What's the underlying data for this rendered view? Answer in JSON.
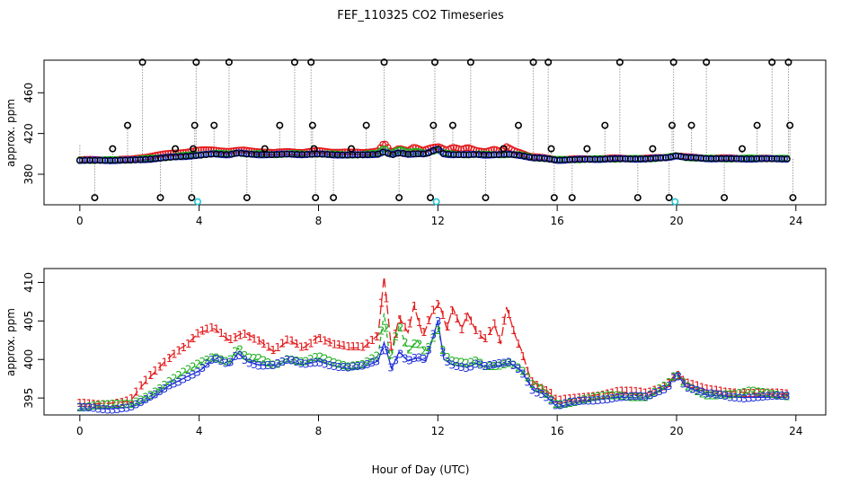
{
  "figure": {
    "title": "FEF_110325  CO2 Timeseries",
    "xlabel": "Hour of Day (UTC)"
  },
  "colors": {
    "black_series": "#000000",
    "red_series": "#e41a1c",
    "green_series": "#22b022",
    "blue_series": "#1f2fd8",
    "cyan_series": "#22c6d6",
    "dotted_line": "#9a9a9a"
  },
  "chart_data": [
    {
      "type": "scatter",
      "title": "",
      "xlabel": "",
      "ylabel": "approx. ppm",
      "xlim": [
        -1.2,
        25
      ],
      "ylim": [
        350,
        492
      ],
      "xticks": [
        0,
        4,
        8,
        12,
        16,
        20,
        24
      ],
      "yticks": [
        380,
        420,
        460
      ],
      "ytick_labels": [
        "380",
        "420",
        "460"
      ],
      "xtick_labels": [
        "0",
        "4",
        "8",
        "12",
        "16",
        "20",
        "24"
      ],
      "grid": false,
      "spikes": [
        {
          "x": 0.5,
          "y": 357
        },
        {
          "x": 1.1,
          "y": 405
        },
        {
          "x": 1.6,
          "y": 428
        },
        {
          "x": 2.1,
          "y": 490
        },
        {
          "x": 2.7,
          "y": 357
        },
        {
          "x": 3.2,
          "y": 405
        },
        {
          "x": 3.75,
          "y": 357
        },
        {
          "x": 3.8,
          "y": 405
        },
        {
          "x": 3.85,
          "y": 428
        },
        {
          "x": 3.9,
          "y": 490
        },
        {
          "x": 4.5,
          "y": 428
        },
        {
          "x": 5.0,
          "y": 490
        },
        {
          "x": 5.6,
          "y": 357
        },
        {
          "x": 6.2,
          "y": 405
        },
        {
          "x": 6.7,
          "y": 428
        },
        {
          "x": 7.2,
          "y": 490
        },
        {
          "x": 7.75,
          "y": 490
        },
        {
          "x": 7.8,
          "y": 428
        },
        {
          "x": 7.85,
          "y": 405
        },
        {
          "x": 7.9,
          "y": 357
        },
        {
          "x": 8.5,
          "y": 357
        },
        {
          "x": 9.1,
          "y": 405
        },
        {
          "x": 9.6,
          "y": 428
        },
        {
          "x": 10.2,
          "y": 490
        },
        {
          "x": 10.7,
          "y": 357
        },
        {
          "x": 11.75,
          "y": 357
        },
        {
          "x": 11.85,
          "y": 428
        },
        {
          "x": 11.9,
          "y": 490
        },
        {
          "x": 12.5,
          "y": 428
        },
        {
          "x": 13.1,
          "y": 490
        },
        {
          "x": 13.6,
          "y": 357
        },
        {
          "x": 14.2,
          "y": 405
        },
        {
          "x": 14.7,
          "y": 428
        },
        {
          "x": 15.2,
          "y": 490
        },
        {
          "x": 15.7,
          "y": 490
        },
        {
          "x": 15.8,
          "y": 405
        },
        {
          "x": 15.9,
          "y": 357
        },
        {
          "x": 16.5,
          "y": 357
        },
        {
          "x": 17.0,
          "y": 405
        },
        {
          "x": 17.6,
          "y": 428
        },
        {
          "x": 18.1,
          "y": 490
        },
        {
          "x": 18.7,
          "y": 357
        },
        {
          "x": 19.2,
          "y": 405
        },
        {
          "x": 19.75,
          "y": 357
        },
        {
          "x": 19.85,
          "y": 428
        },
        {
          "x": 19.9,
          "y": 490
        },
        {
          "x": 20.5,
          "y": 428
        },
        {
          "x": 21.0,
          "y": 490
        },
        {
          "x": 21.6,
          "y": 357
        },
        {
          "x": 22.2,
          "y": 405
        },
        {
          "x": 22.7,
          "y": 428
        },
        {
          "x": 23.2,
          "y": 490
        },
        {
          "x": 23.75,
          "y": 490
        },
        {
          "x": 23.8,
          "y": 428
        },
        {
          "x": 23.9,
          "y": 357
        }
      ],
      "cyan_points": [
        {
          "x": 3.95,
          "y": 353
        },
        {
          "x": 11.95,
          "y": 353
        },
        {
          "x": 19.95,
          "y": 353
        }
      ]
    },
    {
      "type": "line",
      "title": "",
      "xlabel": "Hour of Day (UTC)",
      "ylabel": "approx. ppm",
      "xlim": [
        -1.2,
        25
      ],
      "ylim": [
        392.8,
        411.8
      ],
      "xticks": [
        0,
        4,
        8,
        12,
        16,
        20,
        24
      ],
      "yticks": [
        395,
        400,
        405,
        410
      ],
      "ytick_labels": [
        "395",
        "400",
        "405",
        "410"
      ],
      "xtick_labels": [
        "0",
        "4",
        "8",
        "12",
        "16",
        "20",
        "24"
      ],
      "grid": false,
      "series": [
        {
          "marker": "1",
          "color_key": "red_series",
          "points": [
            [
              0,
              394.2
            ],
            [
              1,
              394.3
            ],
            [
              1.7,
              394.6
            ],
            [
              2,
              396.2
            ],
            [
              2.3,
              397.5
            ],
            [
              2.8,
              399.5
            ],
            [
              3.2,
              401
            ],
            [
              3.6,
              402
            ],
            [
              4,
              403.5
            ],
            [
              4.5,
              404
            ],
            [
              5,
              402.5
            ],
            [
              5.5,
              403.5
            ],
            [
              6,
              402.5
            ],
            [
              6.5,
              401
            ],
            [
              7,
              402.5
            ],
            [
              7.5,
              401.5
            ],
            [
              8,
              403
            ],
            [
              8.5,
              402
            ],
            [
              9,
              401.5
            ],
            [
              9.5,
              401.5
            ],
            [
              10,
              403.2
            ],
            [
              10.2,
              410.8
            ],
            [
              10.45,
              401
            ],
            [
              10.7,
              405.5
            ],
            [
              11,
              403.5
            ],
            [
              11.2,
              407
            ],
            [
              11.5,
              403
            ],
            [
              11.8,
              406
            ],
            [
              12.05,
              407.3
            ],
            [
              12.3,
              404
            ],
            [
              12.5,
              406.7
            ],
            [
              12.8,
              404
            ],
            [
              13,
              406
            ],
            [
              13.3,
              403.5
            ],
            [
              13.6,
              402.5
            ],
            [
              13.9,
              404.5
            ],
            [
              14.1,
              402
            ],
            [
              14.3,
              406.8
            ],
            [
              14.6,
              403
            ],
            [
              14.8,
              401.2
            ],
            [
              15.1,
              397.5
            ],
            [
              15.4,
              396.5
            ],
            [
              15.8,
              395.5
            ],
            [
              16,
              394.5
            ],
            [
              16.5,
              394.8
            ],
            [
              17,
              395.2
            ],
            [
              18,
              395.8
            ],
            [
              19,
              395.6
            ],
            [
              19.7,
              396.8
            ],
            [
              20,
              398.3
            ],
            [
              20.3,
              397
            ],
            [
              21,
              396
            ],
            [
              22,
              395.8
            ],
            [
              23,
              395.5
            ],
            [
              23.7,
              395.5
            ]
          ]
        },
        {
          "marker": "2",
          "color_key": "green_series",
          "points": [
            [
              0,
              393.9
            ],
            [
              1,
              394.0
            ],
            [
              1.7,
              394.2
            ],
            [
              2,
              394.8
            ],
            [
              2.5,
              395.8
            ],
            [
              3,
              397
            ],
            [
              3.5,
              398.2
            ],
            [
              4,
              399.5
            ],
            [
              4.5,
              400.5
            ],
            [
              5,
              399.7
            ],
            [
              5.3,
              401.5
            ],
            [
              5.6,
              400
            ],
            [
              6,
              400
            ],
            [
              6.5,
              399.3
            ],
            [
              7,
              400.2
            ],
            [
              7.5,
              399.6
            ],
            [
              8,
              400.2
            ],
            [
              8.5,
              399.5
            ],
            [
              9,
              399.2
            ],
            [
              9.5,
              399.5
            ],
            [
              10,
              400.5
            ],
            [
              10.2,
              406
            ],
            [
              10.4,
              400
            ],
            [
              10.7,
              404.5
            ],
            [
              11,
              401
            ],
            [
              11.3,
              402.5
            ],
            [
              11.6,
              401
            ],
            [
              12,
              404
            ],
            [
              12.2,
              400.6
            ],
            [
              12.5,
              399.6
            ],
            [
              13,
              399.3
            ],
            [
              13.3,
              399.8
            ],
            [
              13.6,
              399.2
            ],
            [
              14,
              399.3
            ],
            [
              14.4,
              399.6
            ],
            [
              14.8,
              398.6
            ],
            [
              15.2,
              396.4
            ],
            [
              15.5,
              396
            ],
            [
              15.8,
              394.8
            ],
            [
              16,
              394.2
            ],
            [
              16.5,
              394.5
            ],
            [
              17,
              394.8
            ],
            [
              18,
              395.3
            ],
            [
              19,
              395.2
            ],
            [
              19.7,
              396.6
            ],
            [
              20,
              398
            ],
            [
              20.3,
              396.6
            ],
            [
              21,
              395.5
            ],
            [
              22,
              395.3
            ],
            [
              22.5,
              395.8
            ],
            [
              23,
              395.8
            ],
            [
              23.7,
              395.3
            ]
          ]
        },
        {
          "marker": "3",
          "color_key": "blue_series",
          "points": [
            [
              0,
              393.6
            ],
            [
              1,
              393.6
            ],
            [
              1.7,
              393.8
            ],
            [
              2,
              394.2
            ],
            [
              2.5,
              395.2
            ],
            [
              3,
              396.6
            ],
            [
              3.5,
              397.6
            ],
            [
              4,
              398.5
            ],
            [
              4.5,
              400
            ],
            [
              5,
              399.2
            ],
            [
              5.3,
              400.8
            ],
            [
              5.6,
              399.8
            ],
            [
              6,
              399.3
            ],
            [
              6.5,
              399.2
            ],
            [
              7,
              399.8
            ],
            [
              7.5,
              399.3
            ],
            [
              8,
              399.8
            ],
            [
              8.5,
              399.2
            ],
            [
              9,
              398.8
            ],
            [
              9.5,
              399
            ],
            [
              10,
              399.8
            ],
            [
              10.2,
              402.2
            ],
            [
              10.45,
              398.8
            ],
            [
              10.7,
              401
            ],
            [
              11,
              399.8
            ],
            [
              11.3,
              400.2
            ],
            [
              11.6,
              399.8
            ],
            [
              12,
              405
            ],
            [
              12.2,
              400
            ],
            [
              12.5,
              399.3
            ],
            [
              13,
              399
            ],
            [
              13.3,
              399.5
            ],
            [
              13.6,
              399
            ],
            [
              14,
              399.2
            ],
            [
              14.4,
              399.5
            ],
            [
              14.8,
              398.5
            ],
            [
              15.2,
              396
            ],
            [
              15.5,
              395.6
            ],
            [
              15.8,
              394.6
            ],
            [
              16,
              393.8
            ],
            [
              16.5,
              394.3
            ],
            [
              17,
              394.6
            ],
            [
              18,
              395.1
            ],
            [
              19,
              395
            ],
            [
              19.7,
              396.4
            ],
            [
              20,
              398.3
            ],
            [
              20.3,
              396.5
            ],
            [
              21,
              395.4
            ],
            [
              22,
              395.1
            ],
            [
              23,
              395.1
            ],
            [
              23.7,
              395.1
            ]
          ]
        }
      ]
    }
  ]
}
